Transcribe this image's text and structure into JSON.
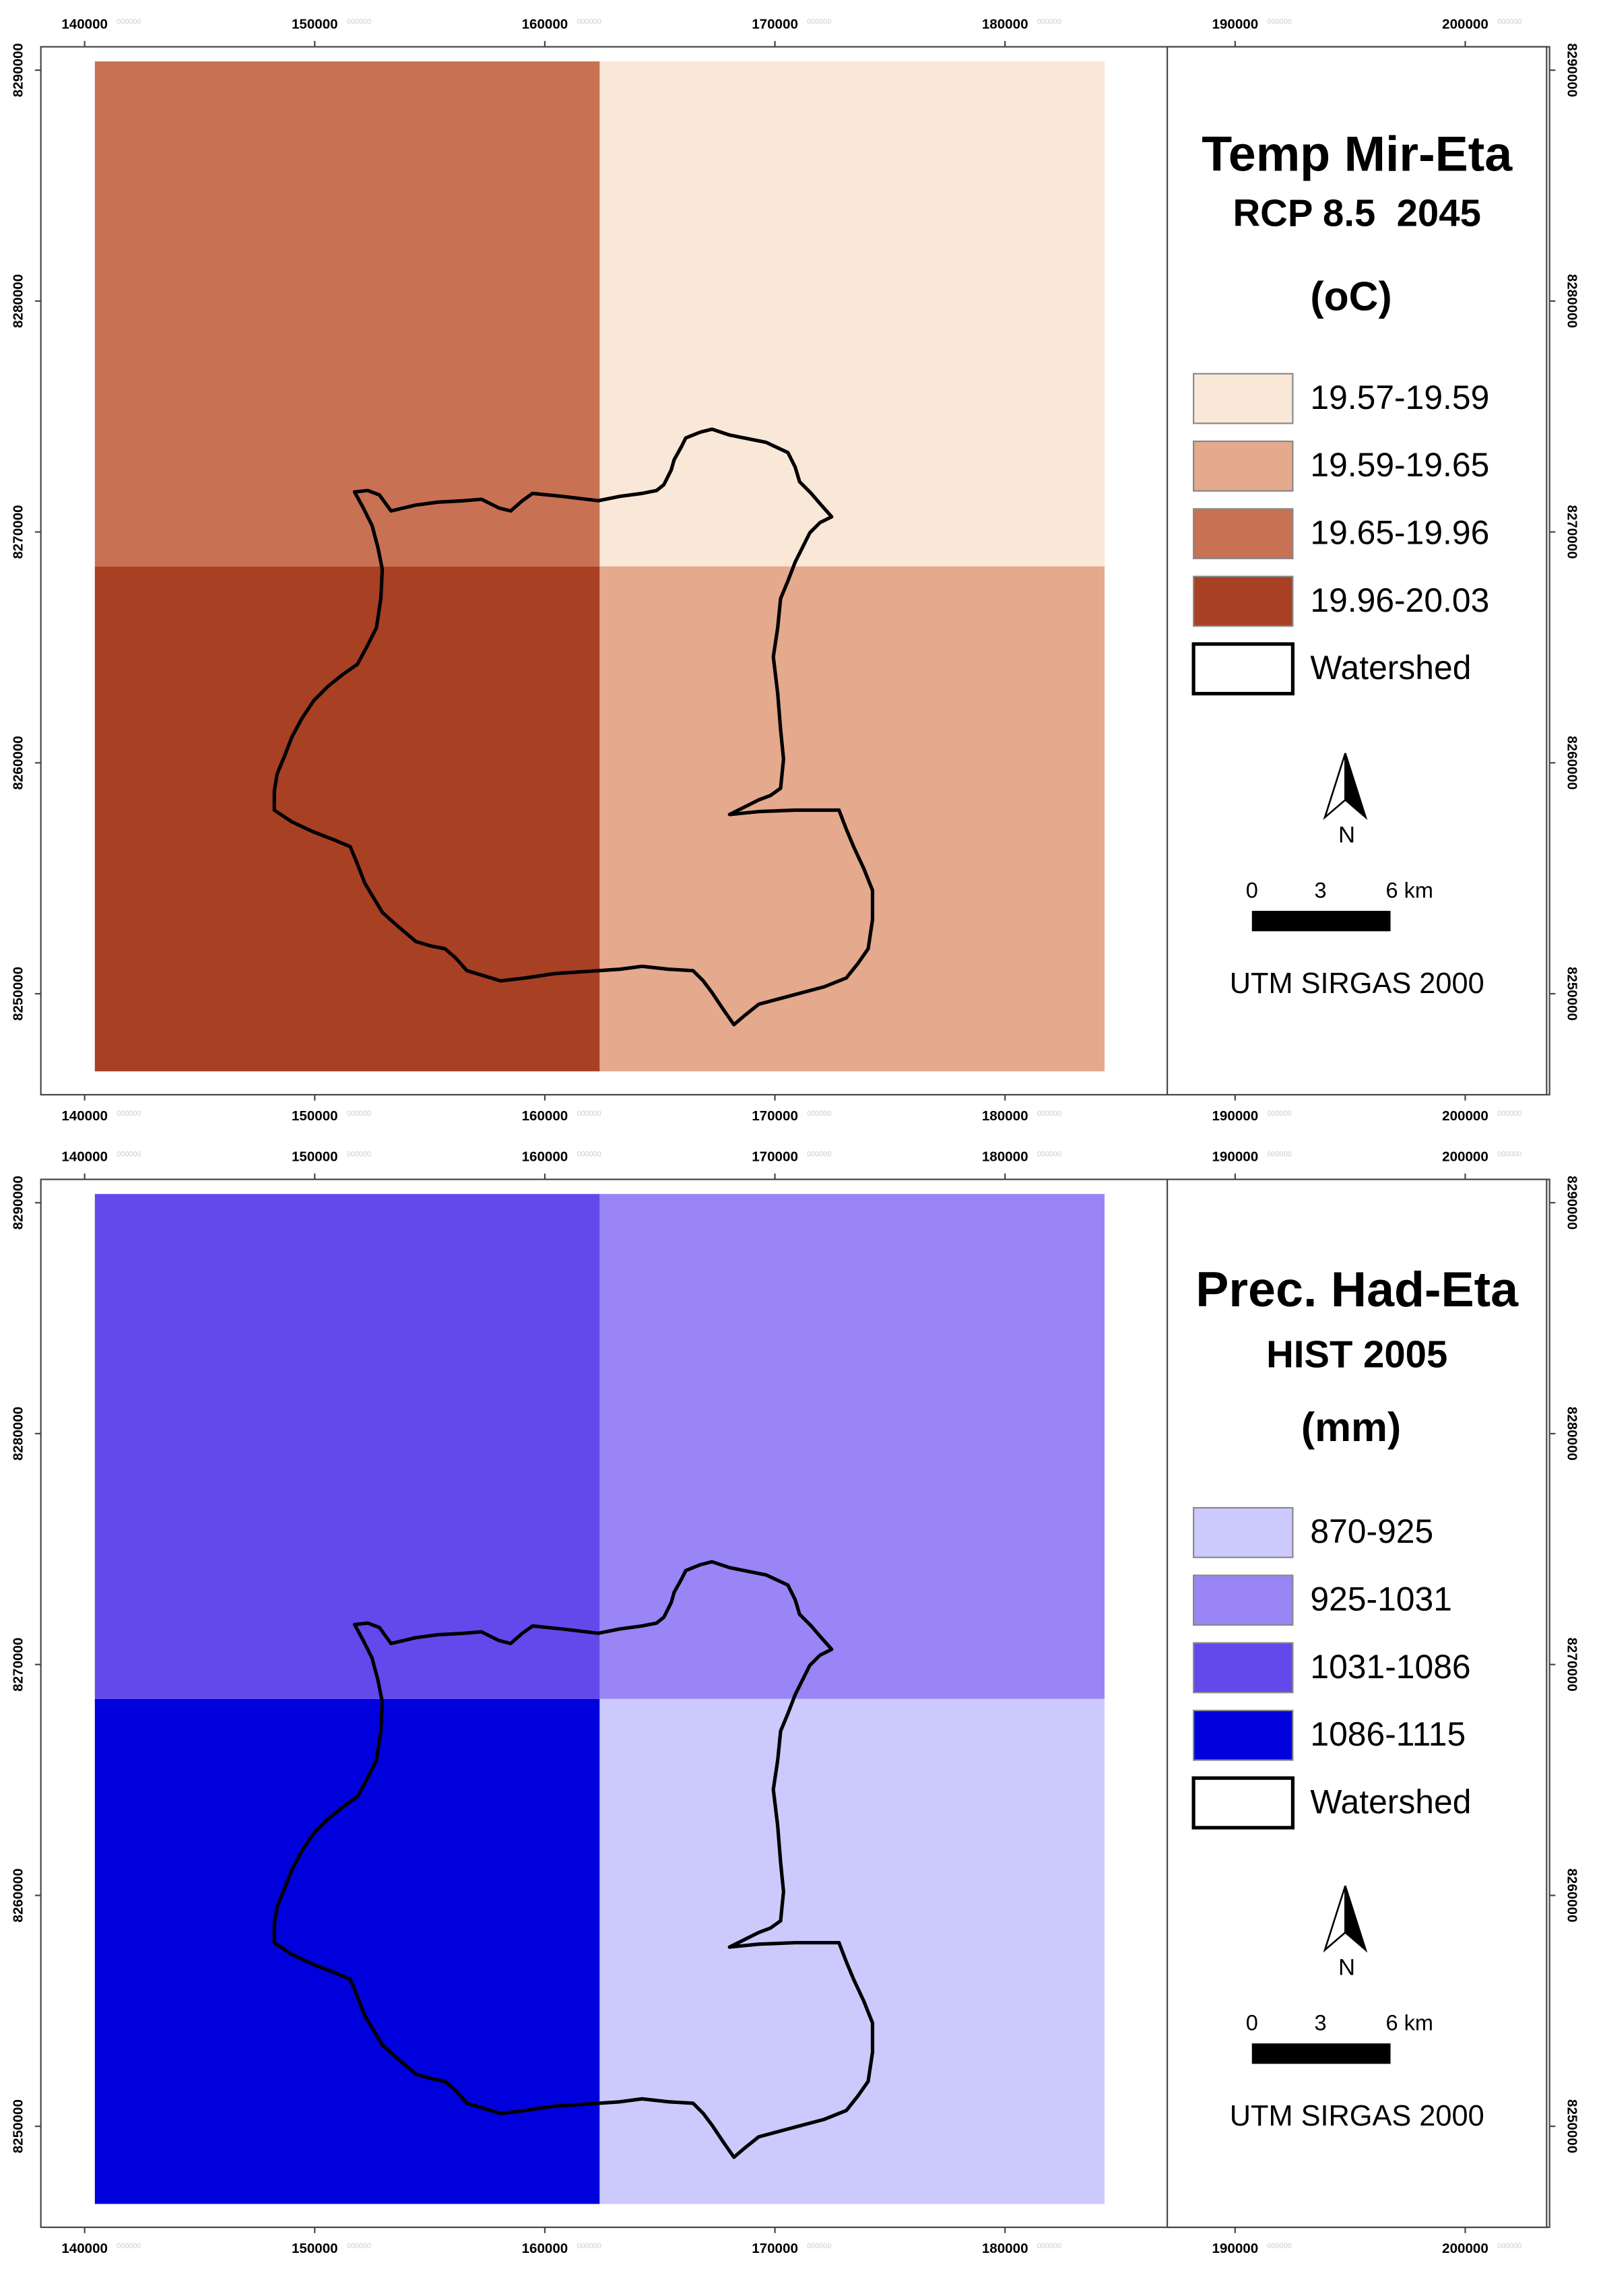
{
  "axes": {
    "x_ticks": [
      140000,
      150000,
      160000,
      170000,
      180000,
      190000,
      200000
    ],
    "y_ticks": [
      8290000,
      8280000,
      8270000,
      8260000,
      8250000
    ],
    "tick_suffix": "000000"
  },
  "maps": [
    {
      "title": "Temp Mir-Eta",
      "subtitle": "RCP 8.5  2045",
      "unit": "(oC)",
      "raster": [
        [
          "#c87153",
          "#f9e7d7"
        ],
        [
          "#a84024",
          "#e5a98d"
        ]
      ],
      "legend": [
        {
          "label": "19.57-19.59",
          "color": "#f9e7d7"
        },
        {
          "label": "19.59-19.65",
          "color": "#e5a98d"
        },
        {
          "label": "19.65-19.96",
          "color": "#c87153"
        },
        {
          "label": "19.96-20.03",
          "color": "#a84024"
        }
      ],
      "watershed_label": "Watershed",
      "north": "N",
      "scale_labels": [
        "0",
        "3",
        "6 km"
      ],
      "crs": "UTM SIRGAS 2000"
    },
    {
      "title": "Prec. Had-Eta",
      "subtitle": "HIST 2005",
      "unit": "(mm)",
      "raster": [
        [
          "#6349ec",
          "#9985f5"
        ],
        [
          "#0000dc",
          "#cccafc"
        ]
      ],
      "legend": [
        {
          "label": "870-925",
          "color": "#cccafc"
        },
        {
          "label": "925-1031",
          "color": "#9985f5"
        },
        {
          "label": "1031-1086",
          "color": "#6349ec"
        },
        {
          "label": "1086-1115",
          "color": "#0000dc"
        }
      ],
      "watershed_label": "Watershed",
      "north": "N",
      "scale_labels": [
        "0",
        "3",
        "6 km"
      ],
      "crs": "UTM SIRGAS 2000"
    }
  ]
}
